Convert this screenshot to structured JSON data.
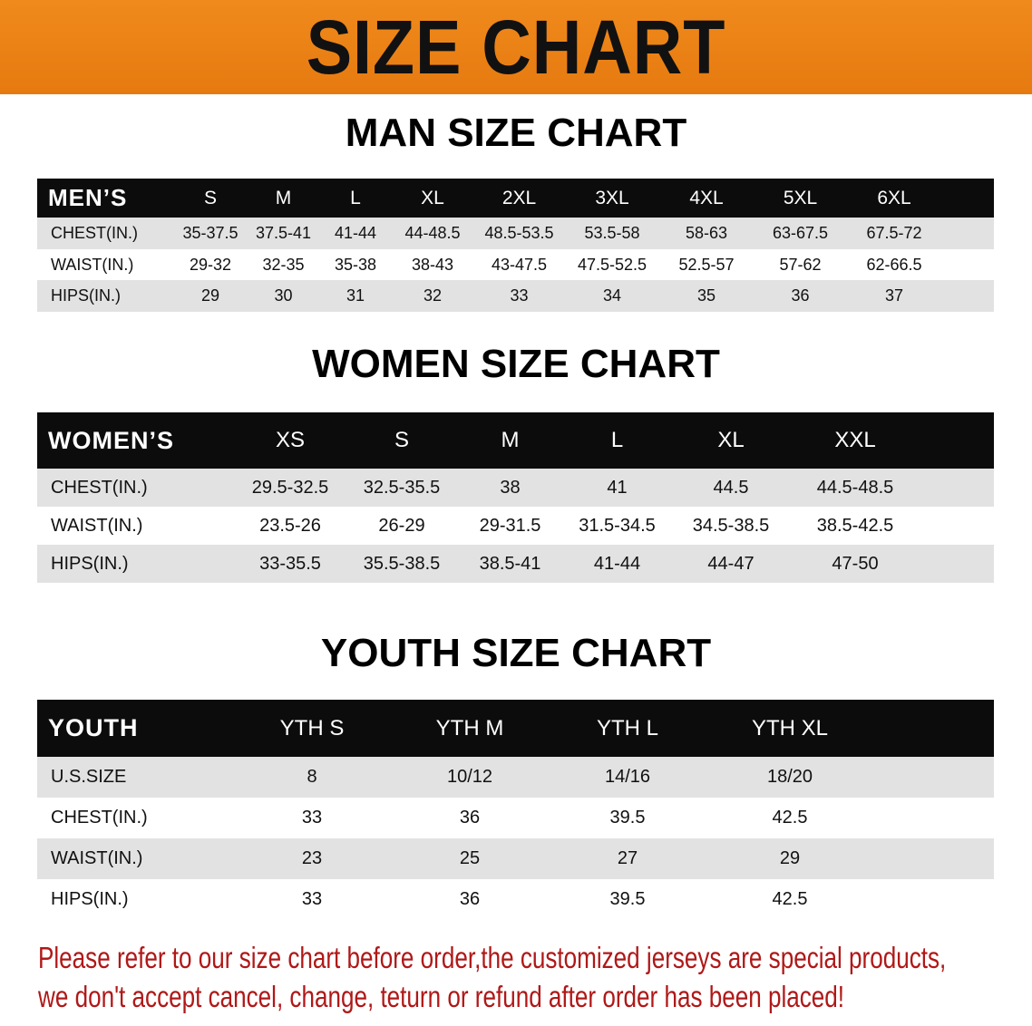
{
  "banner": "SIZE CHART",
  "men": {
    "title": "MAN SIZE CHART",
    "header": [
      "MEN’S",
      "S",
      "M",
      "L",
      "XL",
      "2XL",
      "3XL",
      "4XL",
      "5XL",
      "6XL"
    ],
    "rows": [
      [
        "CHEST(IN.)",
        "35-37.5",
        "37.5-41",
        "41-44",
        "44-48.5",
        "48.5-53.5",
        "53.5-58",
        "58-63",
        "63-67.5",
        "67.5-72"
      ],
      [
        "WAIST(IN.)",
        "29-32",
        "32-35",
        "35-38",
        "38-43",
        "43-47.5",
        "47.5-52.5",
        "52.5-57",
        "57-62",
        "62-66.5"
      ],
      [
        "HIPS(IN.)",
        "29",
        "30",
        "31",
        "32",
        "33",
        "34",
        "35",
        "36",
        "37"
      ]
    ]
  },
  "women": {
    "title": "WOMEN SIZE CHART",
    "header": [
      "WOMEN’S",
      "XS",
      "S",
      "M",
      "L",
      "XL",
      "XXL"
    ],
    "rows": [
      [
        "CHEST(IN.)",
        "29.5-32.5",
        "32.5-35.5",
        "38",
        "41",
        "44.5",
        "44.5-48.5"
      ],
      [
        "WAIST(IN.)",
        "23.5-26",
        "26-29",
        "29-31.5",
        "31.5-34.5",
        "34.5-38.5",
        "38.5-42.5"
      ],
      [
        "HIPS(IN.)",
        "33-35.5",
        "35.5-38.5",
        "38.5-41",
        "41-44",
        "44-47",
        "47-50"
      ]
    ]
  },
  "youth": {
    "title": "YOUTH SIZE CHART",
    "header": [
      "YOUTH",
      "YTH S",
      "YTH M",
      "YTH L",
      "YTH XL"
    ],
    "rows": [
      [
        "U.S.SIZE",
        "8",
        "10/12",
        "14/16",
        "18/20"
      ],
      [
        "CHEST(IN.)",
        "33",
        "36",
        "39.5",
        "42.5"
      ],
      [
        "WAIST(IN.)",
        "23",
        "25",
        "27",
        "29"
      ],
      [
        "HIPS(IN.)",
        "33",
        "36",
        "39.5",
        "42.5"
      ]
    ]
  },
  "notice": [
    "Please refer to our size chart before order,the customized jerseys are special products,",
    "we don't accept cancel, change, teturn or refund after order has been placed!"
  ],
  "colors": {
    "banner": "#e98015",
    "header_bg": "#0c0c0c",
    "stripe": "#e2e2e2",
    "notice": "#b01818"
  }
}
